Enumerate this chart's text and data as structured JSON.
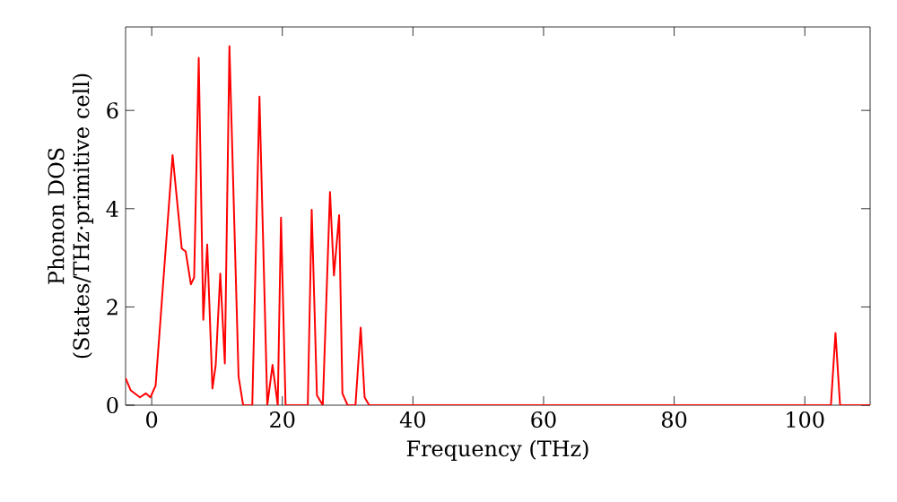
{
  "chart_data": {
    "type": "line",
    "xlabel": "Frequency (THz)",
    "ylabel": "Phonon DOS (States/THz·primitive cell)",
    "x": [
      -4,
      -3.2,
      -1.8,
      -0.9,
      -0.2,
      0.6,
      3.2,
      4.6,
      5.2,
      6.0,
      6.5,
      7.2,
      7.9,
      8.5,
      9.3,
      9.8,
      10.5,
      11.2,
      11.9,
      13.3,
      14.0,
      15.4,
      16.5,
      17.7,
      18.5,
      19.3,
      19.8,
      20.5,
      23.9,
      24.5,
      25.3,
      26.2,
      27.3,
      27.9,
      28.7,
      29.2,
      30.0,
      31.2,
      32.0,
      32.6,
      33.3,
      104.0,
      104.7,
      105.4,
      110
    ],
    "series": [
      {
        "color": "#ff0000",
        "values": [
          0.55,
          0.3,
          0.16,
          0.24,
          0.16,
          0.4,
          5.09,
          3.19,
          3.13,
          2.46,
          2.6,
          7.07,
          1.74,
          3.27,
          0.34,
          0.82,
          2.68,
          0.85,
          7.31,
          0.58,
          0,
          0,
          6.28,
          0,
          0.82,
          0,
          3.82,
          0,
          0,
          3.98,
          0.2,
          0,
          4.34,
          2.64,
          3.87,
          0.24,
          0,
          0,
          1.58,
          0.16,
          0,
          0,
          1.47,
          0,
          0
        ]
      }
    ],
    "xlim": [
      -4,
      110
    ],
    "ylim": [
      0,
      7.7
    ],
    "xticks": [
      0,
      20,
      40,
      60,
      80,
      100
    ],
    "yticks": [
      0,
      2,
      4,
      6
    ],
    "grid": false,
    "marker": "none",
    "line_style": "solid"
  }
}
